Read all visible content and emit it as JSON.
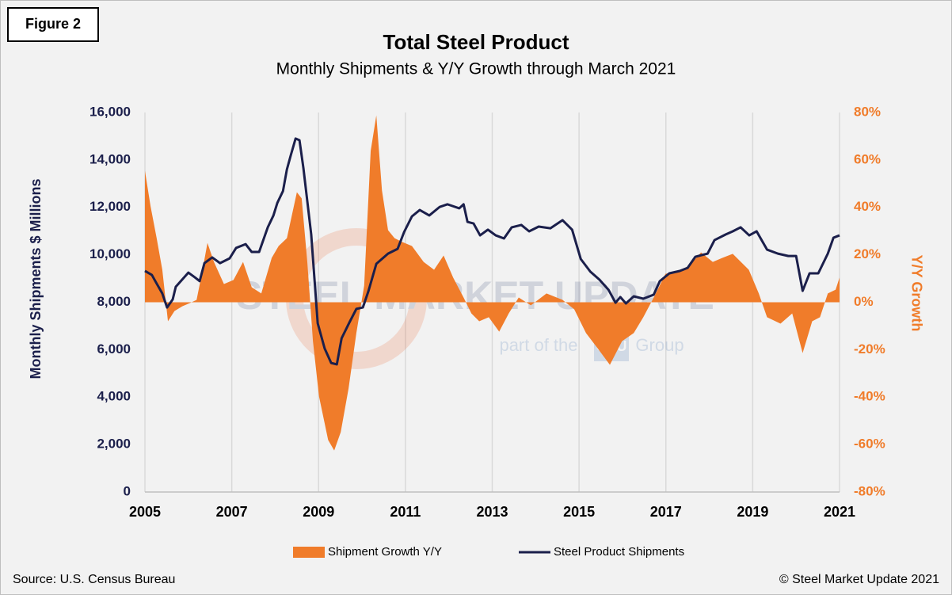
{
  "figure_label": "Figure 2",
  "source": "Source: U.S. Census Bureau",
  "copyright": "© Steel Market Update 2021",
  "watermark": {
    "brand": "STEEL MARKET UPDATE",
    "tagline": "part of the",
    "cru": "CRU",
    "group": "Group"
  },
  "chart_data": {
    "type": "line-area",
    "title": "Total Steel Product",
    "subtitle": "Monthly Shipments & Y/Y Growth through March 2021",
    "y_label": "Monthly Shipments $ Millions",
    "y2_label": "Y/Y Growth",
    "xlim": [
      2005,
      2021
    ],
    "xticks": [
      2005,
      2007,
      2009,
      2011,
      2013,
      2015,
      2017,
      2019,
      2021
    ],
    "ylim": [
      0,
      16000
    ],
    "yticks": [
      0,
      {
        "value": 2000,
        "label": "2,000"
      },
      {
        "value": 4000,
        "label": "4,000"
      },
      {
        "value": 6000,
        "label": "6,000"
      },
      {
        "value": 8000,
        "label": "8,000"
      },
      {
        "value": 10000,
        "label": "10,000"
      },
      {
        "value": 12000,
        "label": "12,000"
      },
      {
        "value": 14000,
        "label": "14,000"
      },
      {
        "value": 16000,
        "label": "16,000"
      }
    ],
    "y2lim": [
      -80,
      80
    ],
    "y2ticks": [
      {
        "value": -80,
        "label": "-80%"
      },
      {
        "value": -60,
        "label": "-60%"
      },
      {
        "value": -40,
        "label": "-40%"
      },
      {
        "value": -20,
        "label": "-20%"
      },
      {
        "value": 0,
        "label": "0%"
      },
      {
        "value": 20,
        "label": "20%"
      },
      {
        "value": 40,
        "label": "40%"
      },
      {
        "value": 60,
        "label": "60%"
      },
      {
        "value": 80,
        "label": "80%"
      }
    ],
    "grid": true,
    "legend": "bottom",
    "series": [
      {
        "name": "Shipment Growth Y/Y",
        "color": "#f07c2a",
        "kind": "area",
        "axis": "y2",
        "x": [
          2005.0,
          2005.13,
          2005.27,
          2005.4,
          2005.53,
          2005.68,
          2005.86,
          2006.04,
          2006.19,
          2006.31,
          2006.44,
          2006.59,
          2006.82,
          2007.04,
          2007.26,
          2007.46,
          2007.68,
          2007.92,
          2008.08,
          2008.27,
          2008.5,
          2008.61,
          2008.74,
          2008.87,
          2009.01,
          2009.22,
          2009.36,
          2009.51,
          2009.69,
          2009.87,
          2010.05,
          2010.2,
          2010.33,
          2010.46,
          2010.6,
          2010.75,
          2010.93,
          2011.15,
          2011.42,
          2011.66,
          2011.88,
          2012.1,
          2012.34,
          2012.52,
          2012.7,
          2012.92,
          2013.16,
          2013.38,
          2013.61,
          2013.89,
          2014.25,
          2014.62,
          2014.89,
          2015.16,
          2015.44,
          2015.71,
          2015.99,
          2016.26,
          2016.48,
          2016.72,
          2016.99,
          2017.26,
          2017.54,
          2017.81,
          2018.08,
          2018.3,
          2018.54,
          2018.91,
          2019.14,
          2019.33,
          2019.64,
          2019.91,
          2020.15,
          2020.37,
          2020.55,
          2020.73,
          2020.91,
          2021.0
        ],
        "values": [
          55.4,
          40.4,
          27,
          13.7,
          -8,
          -3.7,
          -1.7,
          -0.3,
          1,
          12,
          25,
          17,
          7.7,
          9.4,
          17,
          6.3,
          3.7,
          18.7,
          23.7,
          27,
          46.4,
          43.8,
          17,
          -16.4,
          -39.7,
          -58.1,
          -62.5,
          -54.8,
          -36.4,
          -13,
          7,
          63.8,
          78.8,
          47.1,
          30.4,
          27,
          25.4,
          23.7,
          17,
          13.7,
          19.7,
          10.4,
          2,
          -4.7,
          -8,
          -6.3,
          -12.4,
          -4.7,
          2,
          -1.3,
          3.7,
          1,
          -3,
          -13,
          -19.7,
          -26.4,
          -16.4,
          -13,
          -6.3,
          2,
          12,
          13,
          15.4,
          21,
          17,
          18.7,
          20.4,
          13.7,
          3.7,
          -6.3,
          -9,
          -4.7,
          -21.4,
          -8,
          -6.3,
          3.7,
          5.3,
          10.4
        ]
      },
      {
        "name": "Steel Product Shipments",
        "color": "#1b1f4b",
        "kind": "line",
        "axis": "y",
        "x": [
          2005.0,
          2005.16,
          2005.26,
          2005.4,
          2005.51,
          2005.64,
          2005.71,
          2006.0,
          2006.15,
          2006.26,
          2006.37,
          2006.55,
          2006.73,
          2006.95,
          2007.1,
          2007.32,
          2007.46,
          2007.63,
          2007.83,
          2007.96,
          2008.05,
          2008.18,
          2008.27,
          2008.36,
          2008.47,
          2008.56,
          2008.65,
          2008.83,
          2008.98,
          2009.14,
          2009.29,
          2009.42,
          2009.53,
          2009.71,
          2009.87,
          2010.02,
          2010.15,
          2010.33,
          2010.6,
          2010.82,
          2010.97,
          2011.15,
          2011.33,
          2011.55,
          2011.79,
          2011.97,
          2012.24,
          2012.34,
          2012.43,
          2012.57,
          2012.72,
          2012.9,
          2013.08,
          2013.27,
          2013.45,
          2013.67,
          2013.85,
          2014.07,
          2014.34,
          2014.62,
          2014.84,
          2015.04,
          2015.26,
          2015.47,
          2015.68,
          2015.84,
          2015.95,
          2016.08,
          2016.26,
          2016.48,
          2016.72,
          2016.86,
          2017.08,
          2017.32,
          2017.5,
          2017.68,
          2017.96,
          2018.12,
          2018.38,
          2018.54,
          2018.72,
          2018.92,
          2019.09,
          2019.33,
          2019.58,
          2019.82,
          2020.0,
          2020.15,
          2020.31,
          2020.51,
          2020.73,
          2020.86,
          2021.0
        ],
        "values": [
          9320,
          9150,
          8820,
          8370,
          7780,
          8120,
          8650,
          9250,
          9050,
          8890,
          9650,
          9890,
          9650,
          9850,
          10290,
          10450,
          10120,
          10120,
          11160,
          11660,
          12190,
          12690,
          13600,
          14200,
          14900,
          14830,
          13660,
          10860,
          7110,
          6050,
          5440,
          5380,
          6480,
          7150,
          7720,
          7780,
          8480,
          9620,
          10050,
          10250,
          10960,
          11620,
          11890,
          11660,
          12020,
          12130,
          11960,
          12130,
          11390,
          11320,
          10820,
          11060,
          10820,
          10690,
          11160,
          11260,
          10990,
          11190,
          11120,
          11460,
          11060,
          9820,
          9290,
          8950,
          8520,
          7980,
          8220,
          7950,
          8250,
          8150,
          8320,
          8890,
          9220,
          9320,
          9450,
          9920,
          10050,
          10620,
          10860,
          10990,
          11160,
          10820,
          10990,
          10220,
          10050,
          9950,
          9950,
          8480,
          9220,
          9220,
          10050,
          10720,
          10820
        ]
      }
    ]
  }
}
